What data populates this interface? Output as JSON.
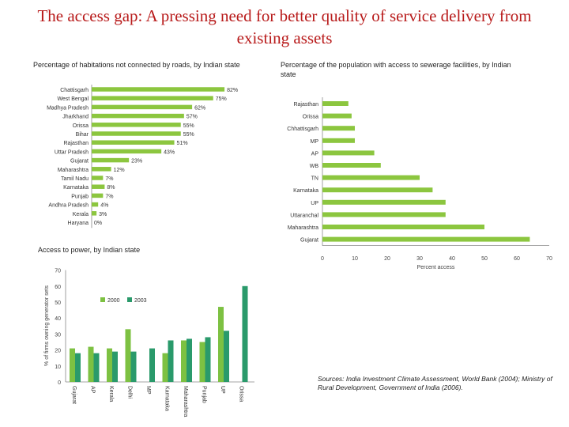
{
  "title": "The access gap: A pressing need for better quality of service delivery from existing assets",
  "sources": "Sources: India Investment Climate Assessment, World Bank (2004); Ministry of Rural Development, Government of India (2006).",
  "colors": {
    "bar": "#8cc63f",
    "green": "#7dc142",
    "teal": "#2a9a6b",
    "axis": "#888888"
  },
  "chart_data": [
    {
      "type": "bar",
      "orientation": "horizontal",
      "title": "Percentage of habitations not connected by roads, by Indian state",
      "categories": [
        "Chattisgarh",
        "West Bengal",
        "Madhya Pradesh",
        "Jharkhand",
        "Orissa",
        "Bihar",
        "Rajasthan",
        "Uttar Pradesh",
        "Gujarat",
        "Maharashtra",
        "Tamil Nadu",
        "Karnataka",
        "Punjab",
        "Andhra Pradesh",
        "Kerala",
        "Haryana"
      ],
      "values": [
        82,
        75,
        62,
        57,
        55,
        55,
        51,
        43,
        23,
        12,
        7,
        8,
        7,
        4,
        3,
        0
      ],
      "value_labels": [
        "82%",
        "75%",
        "62%",
        "57%",
        "55%",
        "55%",
        "51%",
        "43%",
        "23%",
        "12%",
        "7%",
        "8%",
        "7%",
        "4%",
        "3%",
        "0%"
      ]
    },
    {
      "type": "bar",
      "orientation": "horizontal",
      "title": "Percentage of the population with access to sewerage facilities, by Indian state",
      "categories": [
        "Rajasthan",
        "Orissa",
        "Chhattisgarh",
        "MP",
        "AP",
        "WB",
        "TN",
        "Karnataka",
        "UP",
        "Uttaranchal",
        "Maharashtra",
        "Gujarat"
      ],
      "values": [
        8,
        9,
        10,
        10,
        16,
        18,
        30,
        34,
        38,
        38,
        50,
        64
      ],
      "xlabel": "Percent access",
      "xlim": [
        0,
        70
      ],
      "xticks": [
        0,
        10,
        20,
        30,
        40,
        50,
        60,
        70
      ]
    },
    {
      "type": "bar",
      "title": "Access to power, by Indian state",
      "ylabel": "% of firms owning generator sets",
      "ylim": [
        0,
        70
      ],
      "yticks": [
        0,
        10,
        20,
        30,
        40,
        50,
        60,
        70
      ],
      "categories": [
        "Gujarat",
        "AP",
        "Kerala",
        "Delhi",
        "MP",
        "Karnataka",
        "Maharashtra",
        "Punjab",
        "UP",
        "Orissa"
      ],
      "series": [
        {
          "name": "2000",
          "values": [
            21,
            22,
            21,
            33,
            null,
            18,
            26,
            25,
            47,
            null
          ]
        },
        {
          "name": "2003",
          "values": [
            18,
            18,
            19,
            19,
            21,
            26,
            27,
            28,
            32,
            60
          ]
        }
      ]
    }
  ]
}
